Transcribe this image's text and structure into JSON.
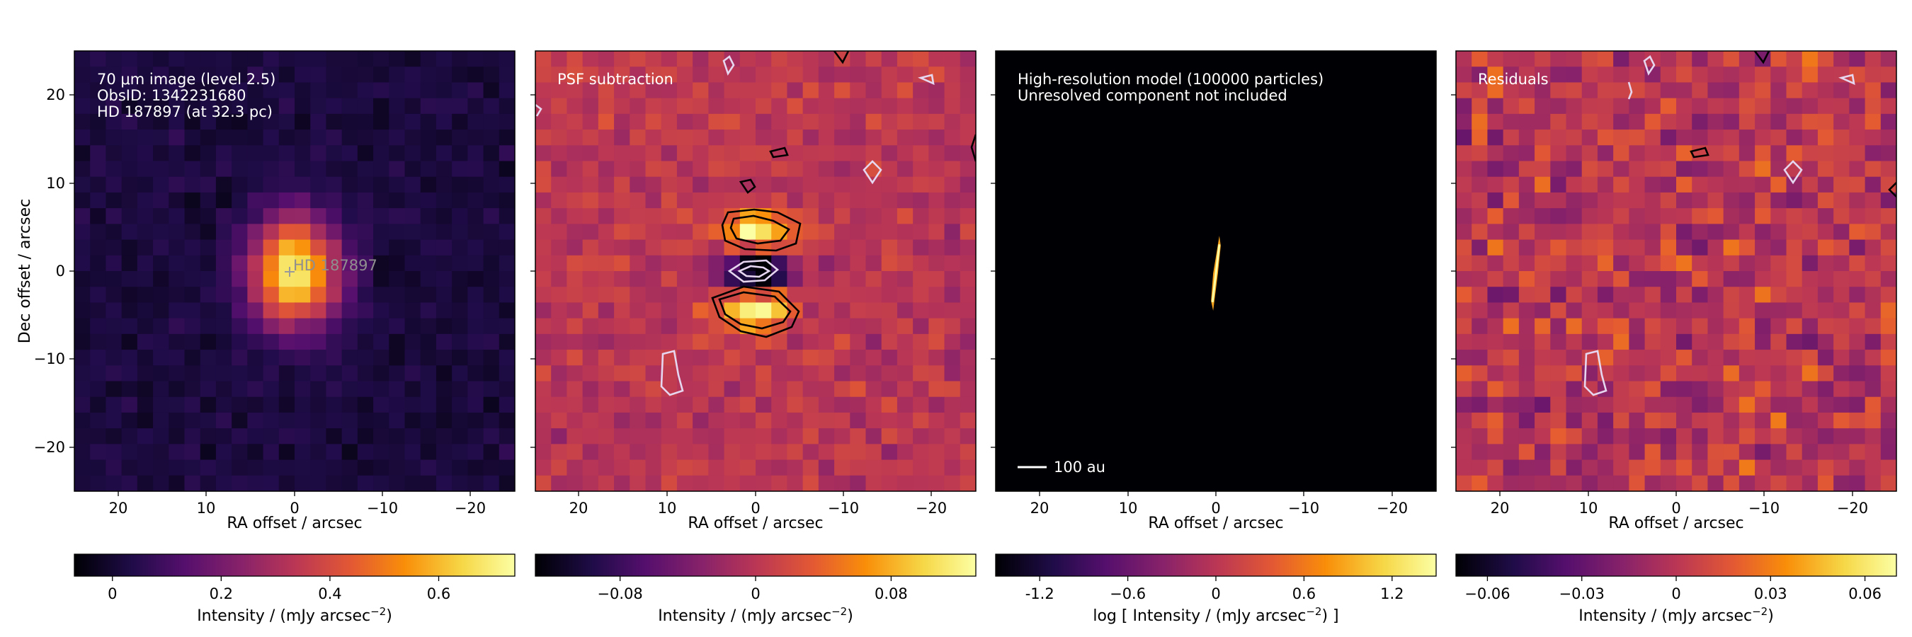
{
  "chart_data": [
    {
      "type": "heatmap",
      "panel": "observation",
      "annotation_lines": [
        "70 μm image (level 2.5)",
        "ObsID: 1342231680",
        "HD 187897 (at 32.3 pc)"
      ],
      "star_label": "HD 187897",
      "xlabel": "RA offset / arcsec",
      "ylabel": "Dec offset / arcsec",
      "xlim": [
        25,
        -25
      ],
      "ylim": [
        -25,
        25
      ],
      "xticks": [
        "20",
        "10",
        "0",
        "−10",
        "−20"
      ],
      "yticks": [
        "20",
        "10",
        "0",
        "−10",
        "−20"
      ],
      "peak": {
        "x": 0,
        "y": 0,
        "value": 0.72
      },
      "colorbar": {
        "label": "Intensity / (mJy arcsec",
        "label_exp": "−2",
        "label_close": ")",
        "ticks": [
          "0",
          "0.2",
          "0.4",
          "0.6"
        ],
        "tick_values": [
          0,
          0.2,
          0.4,
          0.6
        ],
        "range": [
          -0.07,
          0.74
        ]
      }
    },
    {
      "type": "heatmap",
      "panel": "psf_subtraction",
      "annotation_lines": [
        "PSF subtraction"
      ],
      "xlabel": "RA offset / arcsec",
      "xlim": [
        25,
        -25
      ],
      "ylim": [
        -25,
        25
      ],
      "xticks": [
        "20",
        "10",
        "0",
        "−10",
        "−20"
      ],
      "features": [
        {
          "kind": "positive_lobe",
          "x": 0,
          "y": 4.5
        },
        {
          "kind": "negative_core",
          "x": 0,
          "y": 0
        },
        {
          "kind": "positive_lobe",
          "x": 0,
          "y": -4.5
        }
      ],
      "colorbar": {
        "label": "Intensity / (mJy arcsec",
        "label_exp": "−2",
        "label_close": ")",
        "ticks": [
          "−0.08",
          "0",
          "0.08"
        ],
        "tick_values": [
          -0.08,
          0,
          0.08
        ],
        "range": [
          -0.13,
          0.13
        ]
      }
    },
    {
      "type": "heatmap",
      "panel": "model",
      "annotation_lines": [
        "High-resolution model (100000 particles)",
        "Unresolved component not included"
      ],
      "scalebar_label": "100 au",
      "xlabel": "RA offset / arcsec",
      "xlim": [
        25,
        -25
      ],
      "ylim": [
        -25,
        25
      ],
      "xticks": [
        "20",
        "10",
        "0",
        "−10",
        "−20"
      ],
      "disc": {
        "x_center": 0,
        "y_range": [
          -4.5,
          4
        ]
      },
      "colorbar": {
        "label": "log [ Intensity / (mJy arcsec",
        "label_exp": "−2",
        "label_close": ") ]",
        "ticks": [
          "-1.2",
          "−0.6",
          "0",
          "0.6",
          "1.2"
        ],
        "tick_values": [
          -1.2,
          -0.6,
          0,
          0.6,
          1.2
        ],
        "range": [
          -1.5,
          1.5
        ]
      }
    },
    {
      "type": "heatmap",
      "panel": "residuals",
      "annotation_lines": [
        "Residuals"
      ],
      "xlabel": "RA offset / arcsec",
      "xlim": [
        25,
        -25
      ],
      "ylim": [
        -25,
        25
      ],
      "xticks": [
        "20",
        "10",
        "0",
        "−10",
        "−20"
      ],
      "colorbar": {
        "label": "Intensity / (mJy arcsec",
        "label_exp": "−2",
        "label_close": ")",
        "ticks": [
          "−0.06",
          "−0.03",
          "0",
          "0.03",
          "0.06"
        ],
        "tick_values": [
          -0.06,
          -0.03,
          0,
          0.03,
          0.06
        ],
        "range": [
          -0.07,
          0.07
        ]
      }
    }
  ]
}
